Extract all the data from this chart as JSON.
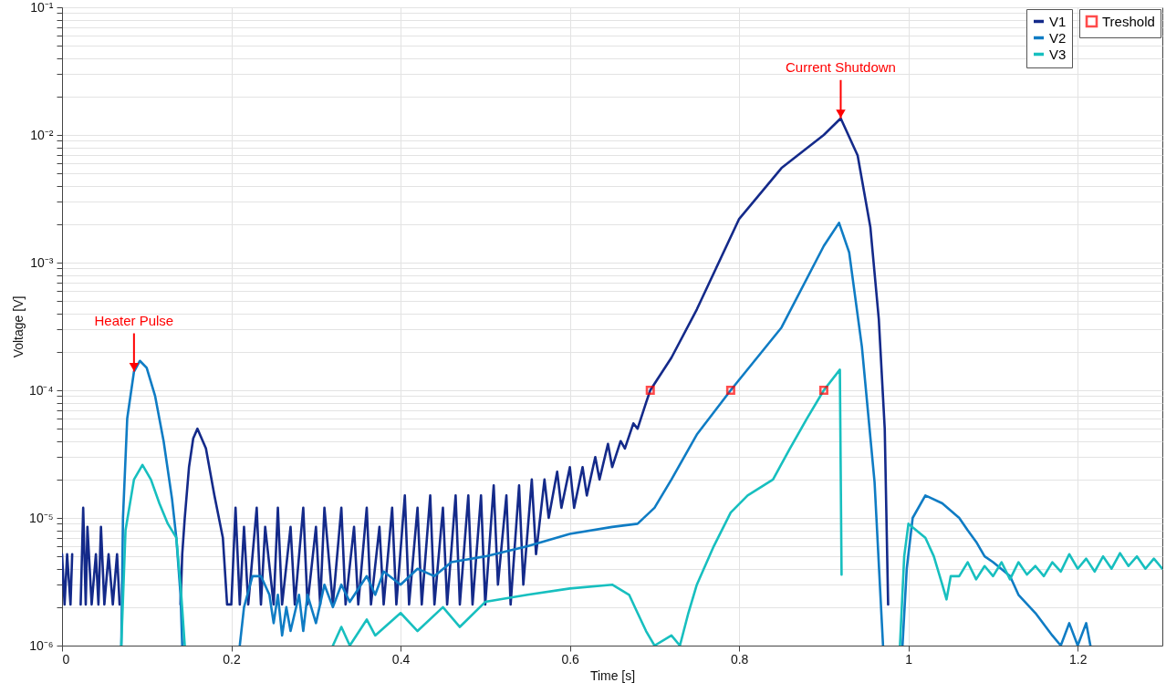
{
  "chart_data": {
    "type": "line",
    "xlabel": "Time [s]",
    "ylabel": "Voltage [V]",
    "log": "y",
    "grid": true,
    "legend": "top right",
    "xlim": [
      0,
      1.3
    ],
    "xticks": [
      0,
      0.2,
      0.4,
      0.6,
      0.8,
      1,
      1.2
    ],
    "ylim": [
      1e-06,
      0.1
    ],
    "yticks": [
      {
        "value": 1e-06,
        "label": "10⁻⁶"
      },
      {
        "value": 2e-06,
        "label": null
      },
      {
        "value": 3e-06,
        "label": null
      },
      {
        "value": 4e-06,
        "label": null
      },
      {
        "value": 5e-06,
        "label": null
      },
      {
        "value": 6e-06,
        "label": null
      },
      {
        "value": 7e-06,
        "label": null
      },
      {
        "value": 8e-06,
        "label": null
      },
      {
        "value": 9e-06,
        "label": null
      },
      {
        "value": 1e-05,
        "label": "10⁻⁵"
      },
      {
        "value": 2e-05,
        "label": null
      },
      {
        "value": 3e-05,
        "label": null
      },
      {
        "value": 4e-05,
        "label": null
      },
      {
        "value": 5e-05,
        "label": null
      },
      {
        "value": 6e-05,
        "label": null
      },
      {
        "value": 7e-05,
        "label": null
      },
      {
        "value": 8e-05,
        "label": null
      },
      {
        "value": 9e-05,
        "label": null
      },
      {
        "value": 0.0001,
        "label": "10⁻⁴"
      },
      {
        "value": 0.0002,
        "label": null
      },
      {
        "value": 0.0003,
        "label": null
      },
      {
        "value": 0.0004,
        "label": null
      },
      {
        "value": 0.0005,
        "label": null
      },
      {
        "value": 0.0006,
        "label": null
      },
      {
        "value": 0.0007,
        "label": null
      },
      {
        "value": 0.0008,
        "label": null
      },
      {
        "value": 0.0009,
        "label": null
      },
      {
        "value": 0.001,
        "label": "10⁻³"
      },
      {
        "value": 0.002,
        "label": null
      },
      {
        "value": 0.003,
        "label": null
      },
      {
        "value": 0.004,
        "label": null
      },
      {
        "value": 0.005,
        "label": null
      },
      {
        "value": 0.006,
        "label": null
      },
      {
        "value": 0.007,
        "label": null
      },
      {
        "value": 0.008,
        "label": null
      },
      {
        "value": 0.009,
        "label": null
      },
      {
        "value": 0.01,
        "label": "10⁻²"
      },
      {
        "value": 0.02,
        "label": null
      },
      {
        "value": 0.03,
        "label": null
      },
      {
        "value": 0.04,
        "label": null
      },
      {
        "value": 0.05,
        "label": null
      },
      {
        "value": 0.06,
        "label": null
      },
      {
        "value": 0.07,
        "label": null
      },
      {
        "value": 0.08,
        "label": null
      },
      {
        "value": 0.09,
        "label": null
      },
      {
        "value": 0.1,
        "label": "10⁻¹"
      }
    ],
    "annotations": [
      {
        "text": "Heater Pulse",
        "x": 0.085,
        "y": 0.00014
      },
      {
        "text": "Current Shutdown",
        "x": 0.92,
        "y": 0.0135
      }
    ],
    "series": [
      {
        "name": "V1",
        "color": "#142a8a",
        "x": [
          0,
          0.003,
          0.006,
          0.01,
          0.012,
          0.016,
          0.022,
          0.025,
          0.028,
          0.03,
          0.035,
          0.04,
          0.043,
          0.046,
          0.05,
          0.055,
          0.06,
          0.065,
          0.068,
          0.1,
          0.14,
          0.142,
          0.145,
          0.15,
          0.155,
          0.16,
          0.17,
          0.18,
          0.19,
          0.195,
          0.2,
          0.205,
          0.21,
          0.215,
          0.22,
          0.23,
          0.235,
          0.24,
          0.25,
          0.255,
          0.26,
          0.27,
          0.275,
          0.285,
          0.29,
          0.3,
          0.305,
          0.31,
          0.32,
          0.33,
          0.335,
          0.345,
          0.35,
          0.36,
          0.365,
          0.375,
          0.38,
          0.39,
          0.395,
          0.405,
          0.41,
          0.42,
          0.425,
          0.435,
          0.44,
          0.45,
          0.455,
          0.465,
          0.47,
          0.48,
          0.485,
          0.495,
          0.5,
          0.51,
          0.515,
          0.525,
          0.53,
          0.54,
          0.545,
          0.555,
          0.56,
          0.57,
          0.575,
          0.585,
          0.59,
          0.6,
          0.605,
          0.615,
          0.62,
          0.63,
          0.635,
          0.645,
          0.65,
          0.66,
          0.665,
          0.675,
          0.68,
          0.69,
          0.695,
          0.72,
          0.75,
          0.8,
          0.85,
          0.9,
          0.92,
          0.94,
          0.955,
          0.965,
          0.972,
          0.976
        ],
        "values": [
          5.2e-06,
          2.1e-06,
          5.2e-06,
          2.1e-06,
          5.2e-06,
          null,
          2.1e-06,
          1.2e-05,
          2.1e-06,
          8.5e-06,
          2.1e-06,
          5.2e-06,
          2.1e-06,
          8.5e-06,
          2.1e-06,
          5.2e-06,
          2.1e-06,
          5.2e-06,
          2.1e-06,
          null,
          2.1e-06,
          5.2e-06,
          1e-05,
          2.5e-05,
          4.2e-05,
          5e-05,
          3.5e-05,
          1.5e-05,
          7e-06,
          2.1e-06,
          2.1e-06,
          1.2e-05,
          2.1e-06,
          8.5e-06,
          2.1e-06,
          1.2e-05,
          2.1e-06,
          8.5e-06,
          2.1e-06,
          1.2e-05,
          2.1e-06,
          8.5e-06,
          2.1e-06,
          1.2e-05,
          2.1e-06,
          8.5e-06,
          2.1e-06,
          1.2e-05,
          2.1e-06,
          1.2e-05,
          2.1e-06,
          8.5e-06,
          2.1e-06,
          1.2e-05,
          2.1e-06,
          8.5e-06,
          2.1e-06,
          1.2e-05,
          2.1e-06,
          1.5e-05,
          2.1e-06,
          1.2e-05,
          2.1e-06,
          1.5e-05,
          2.1e-06,
          1.2e-05,
          2.1e-06,
          1.5e-05,
          2.1e-06,
          1.5e-05,
          2.1e-06,
          1.5e-05,
          2.1e-06,
          1.8e-05,
          3e-06,
          1.5e-05,
          2.1e-06,
          1.8e-05,
          3e-06,
          2e-05,
          5.2e-06,
          2e-05,
          1e-05,
          2.3e-05,
          1.2e-05,
          2.5e-05,
          1.2e-05,
          2.5e-05,
          1.5e-05,
          3e-05,
          2e-05,
          3.8e-05,
          2.5e-05,
          4e-05,
          3.5e-05,
          5.5e-05,
          5e-05,
          8e-05,
          0.0001,
          0.00018,
          0.00043,
          0.0022,
          0.0055,
          0.01,
          0.0135,
          0.0069,
          0.0019,
          0.00036,
          5e-05,
          2.1e-06
        ]
      },
      {
        "name": "V2",
        "color": "#0f7cc4",
        "x": [
          0.07,
          0.072,
          0.077,
          0.085,
          0.092,
          0.1,
          0.11,
          0.12,
          0.13,
          0.135,
          0.14,
          0.142,
          0.18,
          0.21,
          0.215,
          0.225,
          0.235,
          0.245,
          0.25,
          0.255,
          0.26,
          0.265,
          0.27,
          0.28,
          0.285,
          0.29,
          0.3,
          0.31,
          0.32,
          0.33,
          0.34,
          0.36,
          0.37,
          0.38,
          0.4,
          0.42,
          0.44,
          0.46,
          0.5,
          0.55,
          0.6,
          0.65,
          0.68,
          0.7,
          0.72,
          0.75,
          0.79,
          0.85,
          0.9,
          0.918,
          0.93,
          0.945,
          0.96,
          0.97,
          0.98,
          0.993,
          0.998,
          1.005,
          1.02,
          1.04,
          1.06,
          1.07,
          1.08,
          1.09,
          1.1,
          1.12,
          1.13,
          1.15,
          1.17,
          1.18,
          1.19,
          1.2,
          1.21,
          1.215
        ],
        "values": [
          1e-06,
          1e-05,
          6e-05,
          0.00014,
          0.00017,
          0.00015,
          9e-05,
          4e-05,
          1.4e-05,
          7e-06,
          2.5e-06,
          1e-06,
          null,
          1e-06,
          2e-06,
          3.5e-06,
          3.5e-06,
          2.5e-06,
          1.5e-06,
          2.5e-06,
          1.2e-06,
          2e-06,
          1.3e-06,
          2.5e-06,
          1.3e-06,
          2.5e-06,
          1.5e-06,
          3e-06,
          2e-06,
          3e-06,
          2.2e-06,
          3.5e-06,
          2.5e-06,
          3.8e-06,
          3e-06,
          4e-06,
          3.5e-06,
          4.5e-06,
          5e-06,
          6e-06,
          7.5e-06,
          8.5e-06,
          9e-06,
          1.2e-05,
          2e-05,
          4.5e-05,
          0.0001,
          0.00031,
          0.00135,
          0.00205,
          0.0012,
          0.00022,
          1.9e-05,
          1e-06,
          null,
          1e-06,
          4e-06,
          1e-05,
          1.5e-05,
          1.3e-05,
          1e-05,
          8e-06,
          6.5e-06,
          5e-06,
          4.5e-06,
          3.5e-06,
          2.5e-06,
          1.8e-06,
          1.2e-06,
          1e-06,
          1.5e-06,
          1e-06,
          1.5e-06,
          1e-06
        ]
      },
      {
        "name": "V3",
        "color": "#17bfbf",
        "x": [
          0.07,
          0.075,
          0.085,
          0.095,
          0.105,
          0.115,
          0.125,
          0.135,
          0.14,
          0.145,
          0.2,
          0.32,
          0.33,
          0.34,
          0.36,
          0.37,
          0.4,
          0.42,
          0.45,
          0.47,
          0.5,
          0.55,
          0.6,
          0.65,
          0.67,
          0.68,
          0.69,
          0.7,
          0.72,
          0.73,
          0.74,
          0.75,
          0.77,
          0.79,
          0.81,
          0.84,
          0.86,
          0.88,
          0.9,
          0.919,
          0.921,
          0.95,
          0.99,
          0.995,
          1,
          1.02,
          1.03,
          1.04,
          1.045,
          1.05,
          1.06,
          1.07,
          1.08,
          1.09,
          1.1,
          1.11,
          1.12,
          1.13,
          1.14,
          1.15,
          1.16,
          1.17,
          1.18,
          1.19,
          1.2,
          1.21,
          1.22,
          1.23,
          1.24,
          1.25,
          1.26,
          1.27,
          1.28,
          1.29,
          1.3
        ],
        "values": [
          1e-06,
          8e-06,
          2e-05,
          2.6e-05,
          2e-05,
          1.3e-05,
          9e-06,
          7e-06,
          3e-06,
          1e-06,
          null,
          1e-06,
          1.4e-06,
          1e-06,
          1.6e-06,
          1.2e-06,
          1.8e-06,
          1.3e-06,
          2e-06,
          1.4e-06,
          2.2e-06,
          2.5e-06,
          2.8e-06,
          3e-06,
          2.5e-06,
          1.8e-06,
          1.3e-06,
          1e-06,
          1.2e-06,
          1e-06,
          1.8e-06,
          3e-06,
          6e-06,
          1.1e-05,
          1.5e-05,
          2e-05,
          3.5e-05,
          6e-05,
          0.0001,
          0.000145,
          3.6e-06,
          null,
          1e-06,
          5e-06,
          9e-06,
          7e-06,
          5e-06,
          3e-06,
          2.3e-06,
          3.5e-06,
          3.5e-06,
          4.5e-06,
          3.3e-06,
          4.2e-06,
          3.5e-06,
          4.5e-06,
          3.3e-06,
          4.5e-06,
          3.6e-06,
          4.2e-06,
          3.5e-06,
          4.5e-06,
          3.8e-06,
          5.2e-06,
          4e-06,
          4.8e-06,
          3.8e-06,
          5e-06,
          4e-06,
          5.3e-06,
          4.2e-06,
          5e-06,
          4e-06,
          4.8e-06,
          4e-06
        ]
      },
      {
        "name": "Treshold",
        "type": "scatter",
        "marker": "square",
        "color": "#ff0000",
        "x": [
          0.695,
          0.79,
          0.9
        ],
        "values": [
          0.0001,
          0.0001,
          0.0001
        ]
      }
    ]
  }
}
